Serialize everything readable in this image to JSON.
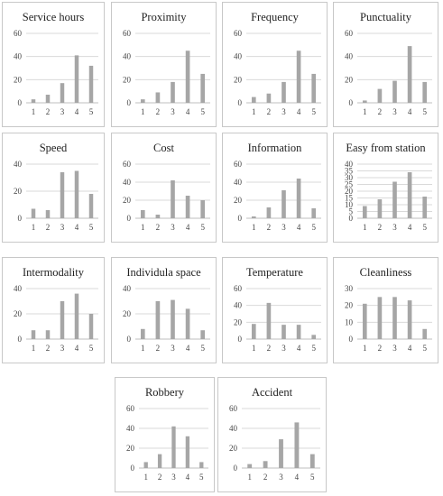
{
  "chart_data": [
    {
      "type": "bar",
      "title": "Service hours",
      "categories": [
        "1",
        "2",
        "3",
        "4",
        "5"
      ],
      "values": [
        3,
        7,
        17,
        41,
        32
      ],
      "ylim": [
        0,
        60
      ],
      "yticks": [
        0,
        20,
        40,
        60
      ]
    },
    {
      "type": "bar",
      "title": "Proximity",
      "categories": [
        "1",
        "2",
        "3",
        "4",
        "5"
      ],
      "values": [
        3,
        9,
        18,
        45,
        25
      ],
      "ylim": [
        0,
        60
      ],
      "yticks": [
        0,
        20,
        40,
        60
      ]
    },
    {
      "type": "bar",
      "title": "Frequency",
      "categories": [
        "1",
        "2",
        "3",
        "4",
        "5"
      ],
      "values": [
        5,
        8,
        18,
        45,
        25
      ],
      "ylim": [
        0,
        60
      ],
      "yticks": [
        0,
        20,
        40,
        60
      ]
    },
    {
      "type": "bar",
      "title": "Punctuality",
      "categories": [
        "1",
        "2",
        "3",
        "4",
        "5"
      ],
      "values": [
        2,
        12,
        19,
        49,
        18
      ],
      "ylim": [
        0,
        60
      ],
      "yticks": [
        0,
        20,
        40,
        60
      ]
    },
    {
      "type": "bar",
      "title": "Speed",
      "categories": [
        "1",
        "2",
        "3",
        "4",
        "5"
      ],
      "values": [
        7,
        6,
        34,
        35,
        18
      ],
      "ylim": [
        0,
        40
      ],
      "yticks": [
        0,
        20,
        40
      ]
    },
    {
      "type": "bar",
      "title": "Cost",
      "categories": [
        "1",
        "2",
        "3",
        "4",
        "5"
      ],
      "values": [
        9,
        4,
        42,
        25,
        20
      ],
      "ylim": [
        0,
        60
      ],
      "yticks": [
        0,
        20,
        40,
        60
      ]
    },
    {
      "type": "bar",
      "title": "Information",
      "categories": [
        "1",
        "2",
        "3",
        "4",
        "5"
      ],
      "values": [
        2,
        12,
        31,
        44,
        11
      ],
      "ylim": [
        0,
        60
      ],
      "yticks": [
        0,
        20,
        40,
        60
      ]
    },
    {
      "type": "bar",
      "title": "Easy from station",
      "categories": [
        "1",
        "2",
        "3",
        "4",
        "5"
      ],
      "values": [
        9,
        14,
        27,
        34,
        16
      ],
      "ylim": [
        0,
        40
      ],
      "yticks": [
        0,
        5,
        10,
        15,
        20,
        25,
        30,
        35,
        40
      ]
    },
    {
      "type": "bar",
      "title": "Intermodality",
      "categories": [
        "1",
        "2",
        "3",
        "4",
        "5"
      ],
      "values": [
        7,
        7,
        30,
        36,
        20
      ],
      "ylim": [
        0,
        40
      ],
      "yticks": [
        0,
        20,
        40
      ]
    },
    {
      "type": "bar",
      "title": "Individula space",
      "categories": [
        "1",
        "2",
        "3",
        "4",
        "5"
      ],
      "values": [
        8,
        30,
        31,
        24,
        7
      ],
      "ylim": [
        0,
        40
      ],
      "yticks": [
        0,
        20,
        40
      ]
    },
    {
      "type": "bar",
      "title": "Temperature",
      "categories": [
        "1",
        "2",
        "3",
        "4",
        "5"
      ],
      "values": [
        18,
        43,
        17,
        17,
        5
      ],
      "ylim": [
        0,
        60
      ],
      "yticks": [
        0,
        20,
        40,
        60
      ]
    },
    {
      "type": "bar",
      "title": "Cleanliness",
      "categories": [
        "1",
        "2",
        "3",
        "4",
        "5"
      ],
      "values": [
        21,
        25,
        25,
        23,
        6
      ],
      "ylim": [
        0,
        30
      ],
      "yticks": [
        0,
        10,
        20,
        30
      ]
    },
    {
      "type": "bar",
      "title": "Robbery",
      "categories": [
        "1",
        "2",
        "3",
        "4",
        "5"
      ],
      "values": [
        6,
        14,
        42,
        32,
        6
      ],
      "ylim": [
        0,
        60
      ],
      "yticks": [
        0,
        20,
        40,
        60
      ]
    },
    {
      "type": "bar",
      "title": "Accident",
      "categories": [
        "1",
        "2",
        "3",
        "4",
        "5"
      ],
      "values": [
        4,
        7,
        29,
        46,
        14
      ],
      "ylim": [
        0,
        60
      ],
      "yticks": [
        0,
        20,
        40,
        60
      ]
    }
  ]
}
